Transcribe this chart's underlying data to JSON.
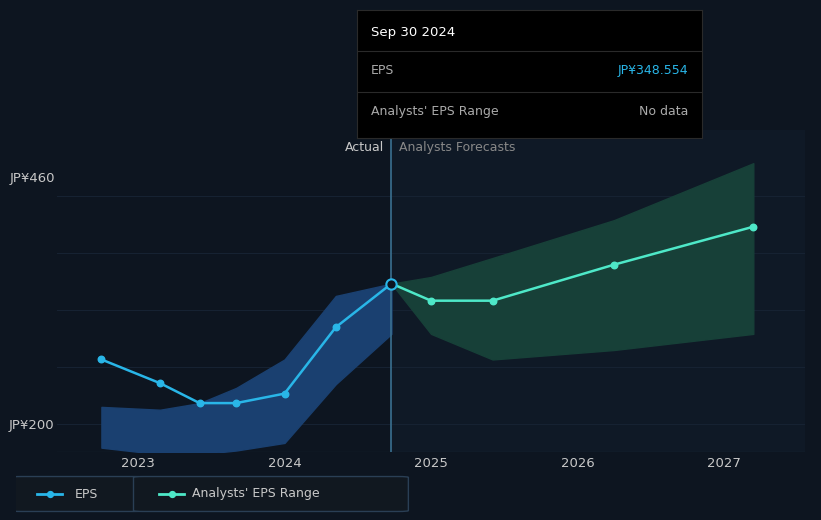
{
  "bg_color": "#0d1520",
  "plot_bg_color": "#0d1520",
  "ylabel_top": "JP¥460",
  "ylabel_bottom": "JP¥200",
  "ylim": [
    170,
    510
  ],
  "x_tick_labels": [
    "2023",
    "2024",
    "2025",
    "2026",
    "2027"
  ],
  "x_tick_positions": [
    2023.0,
    2024.0,
    2025.0,
    2026.0,
    2027.0
  ],
  "divider_x": 2024.73,
  "actual_label": "Actual",
  "forecast_label": "Analysts Forecasts",
  "eps_x": [
    2022.75,
    2023.15,
    2023.42,
    2023.67,
    2024.0,
    2024.35,
    2024.73
  ],
  "eps_y": [
    268,
    243,
    222,
    222,
    232,
    302,
    348
  ],
  "forecast_x": [
    2024.73,
    2025.0,
    2025.42,
    2026.25,
    2027.2
  ],
  "forecast_y": [
    348,
    330,
    330,
    368,
    408
  ],
  "forecast_upper": [
    348,
    355,
    375,
    415,
    475
  ],
  "forecast_lower": [
    348,
    295,
    268,
    278,
    295
  ],
  "actual_band_upper": [
    218,
    215,
    222,
    238,
    268,
    335,
    348
  ],
  "actual_band_lower": [
    175,
    168,
    168,
    172,
    180,
    242,
    295
  ],
  "eps_color": "#29b6e8",
  "forecast_color": "#4ee8c8",
  "actual_band_color": "#1a4070",
  "forecast_band_color": "#174038",
  "text_color": "#c8c8c8",
  "dim_text_color": "#888888",
  "axis_color": "#2a3f55",
  "grid_color": "#162232",
  "tooltip_bg": "#000000",
  "tooltip_title": "Sep 30 2024",
  "tooltip_eps_label": "EPS",
  "tooltip_eps_value": "JP¥348.554",
  "tooltip_range_label": "Analysts' EPS Range",
  "tooltip_range_value": "No data",
  "tooltip_eps_color": "#29b6e8",
  "legend_eps_label": "EPS",
  "legend_range_label": "Analysts' EPS Range",
  "divider_color": "#3a7090",
  "divider_bg_color": "#162535"
}
